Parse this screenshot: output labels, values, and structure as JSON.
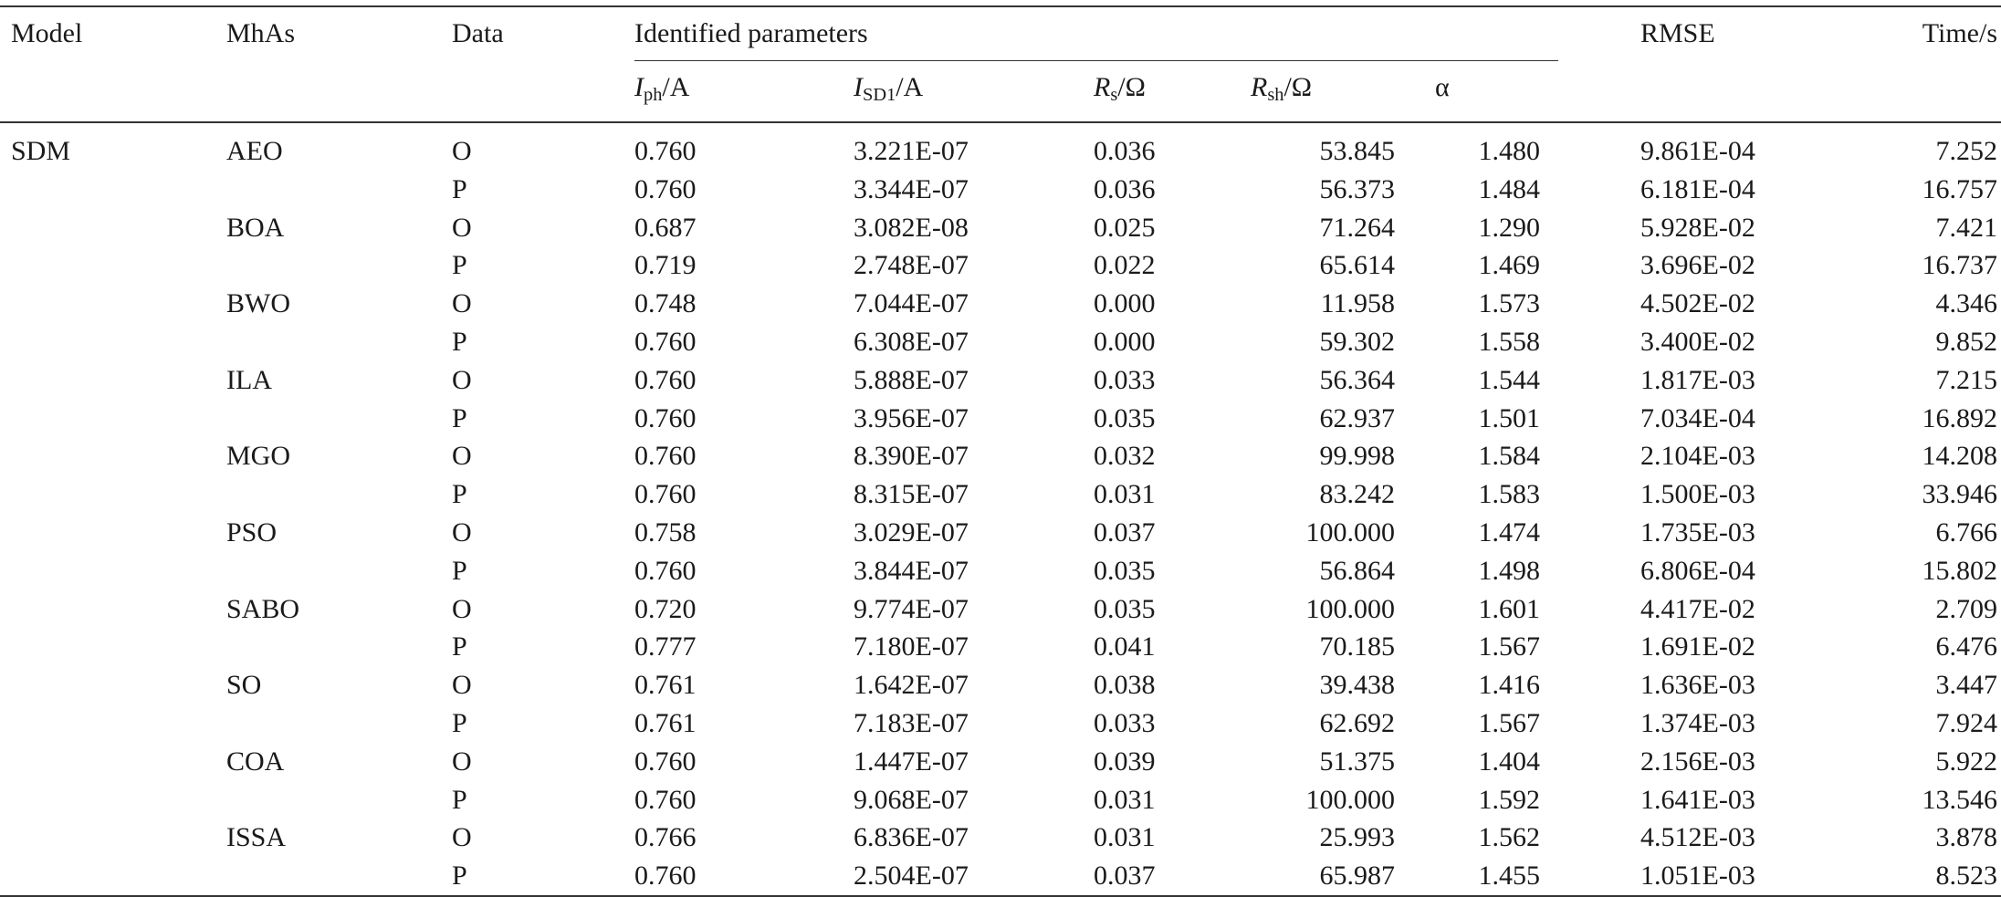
{
  "table": {
    "headers": {
      "model": "Model",
      "mhas": "MhAs",
      "data": "Data",
      "identified": "Identified parameters",
      "iph": "I",
      "iph_sub": "ph",
      "iph_unit": "/A",
      "isd": "I",
      "isd_sub": "SD1",
      "isd_unit": "/A",
      "rs": "R",
      "rs_sub": "s",
      "rs_unit": "/Ω",
      "rsh": "R",
      "rsh_sub": "sh",
      "rsh_unit": "/Ω",
      "alpha": "α",
      "rmse": "RMSE",
      "time": "Time/s"
    },
    "rows": [
      {
        "model": "SDM",
        "mha": "AEO",
        "data": "O",
        "iph": "0.760",
        "isd": "3.221E-07",
        "rs": "0.036",
        "rsh": "53.845",
        "alpha": "1.480",
        "rmse": "9.861E-04",
        "time": "7.252"
      },
      {
        "model": "",
        "mha": "",
        "data": "P",
        "iph": "0.760",
        "isd": "3.344E-07",
        "rs": "0.036",
        "rsh": "56.373",
        "alpha": "1.484",
        "rmse": "6.181E-04",
        "time": "16.757"
      },
      {
        "model": "",
        "mha": "BOA",
        "data": "O",
        "iph": "0.687",
        "isd": "3.082E-08",
        "rs": "0.025",
        "rsh": "71.264",
        "alpha": "1.290",
        "rmse": "5.928E-02",
        "time": "7.421"
      },
      {
        "model": "",
        "mha": "",
        "data": "P",
        "iph": "0.719",
        "isd": "2.748E-07",
        "rs": "0.022",
        "rsh": "65.614",
        "alpha": "1.469",
        "rmse": "3.696E-02",
        "time": "16.737"
      },
      {
        "model": "",
        "mha": "BWO",
        "data": "O",
        "iph": "0.748",
        "isd": "7.044E-07",
        "rs": "0.000",
        "rsh": "11.958",
        "alpha": "1.573",
        "rmse": "4.502E-02",
        "time": "4.346"
      },
      {
        "model": "",
        "mha": "",
        "data": "P",
        "iph": "0.760",
        "isd": "6.308E-07",
        "rs": "0.000",
        "rsh": "59.302",
        "alpha": "1.558",
        "rmse": "3.400E-02",
        "time": "9.852"
      },
      {
        "model": "",
        "mha": "ILA",
        "data": "O",
        "iph": "0.760",
        "isd": "5.888E-07",
        "rs": "0.033",
        "rsh": "56.364",
        "alpha": "1.544",
        "rmse": "1.817E-03",
        "time": "7.215"
      },
      {
        "model": "",
        "mha": "",
        "data": "P",
        "iph": "0.760",
        "isd": "3.956E-07",
        "rs": "0.035",
        "rsh": "62.937",
        "alpha": "1.501",
        "rmse": "7.034E-04",
        "time": "16.892"
      },
      {
        "model": "",
        "mha": "MGO",
        "data": "O",
        "iph": "0.760",
        "isd": "8.390E-07",
        "rs": "0.032",
        "rsh": "99.998",
        "alpha": "1.584",
        "rmse": "2.104E-03",
        "time": "14.208"
      },
      {
        "model": "",
        "mha": "",
        "data": "P",
        "iph": "0.760",
        "isd": "8.315E-07",
        "rs": "0.031",
        "rsh": "83.242",
        "alpha": "1.583",
        "rmse": "1.500E-03",
        "time": "33.946"
      },
      {
        "model": "",
        "mha": "PSO",
        "data": "O",
        "iph": "0.758",
        "isd": "3.029E-07",
        "rs": "0.037",
        "rsh": "100.000",
        "alpha": "1.474",
        "rmse": "1.735E-03",
        "time": "6.766"
      },
      {
        "model": "",
        "mha": "",
        "data": "P",
        "iph": "0.760",
        "isd": "3.844E-07",
        "rs": "0.035",
        "rsh": "56.864",
        "alpha": "1.498",
        "rmse": "6.806E-04",
        "time": "15.802"
      },
      {
        "model": "",
        "mha": "SABO",
        "data": "O",
        "iph": "0.720",
        "isd": "9.774E-07",
        "rs": "0.035",
        "rsh": "100.000",
        "alpha": "1.601",
        "rmse": "4.417E-02",
        "time": "2.709"
      },
      {
        "model": "",
        "mha": "",
        "data": "P",
        "iph": "0.777",
        "isd": "7.180E-07",
        "rs": "0.041",
        "rsh": "70.185",
        "alpha": "1.567",
        "rmse": "1.691E-02",
        "time": "6.476"
      },
      {
        "model": "",
        "mha": "SO",
        "data": "O",
        "iph": "0.761",
        "isd": "1.642E-07",
        "rs": "0.038",
        "rsh": "39.438",
        "alpha": "1.416",
        "rmse": "1.636E-03",
        "time": "3.447"
      },
      {
        "model": "",
        "mha": "",
        "data": "P",
        "iph": "0.761",
        "isd": "7.183E-07",
        "rs": "0.033",
        "rsh": "62.692",
        "alpha": "1.567",
        "rmse": "1.374E-03",
        "time": "7.924"
      },
      {
        "model": "",
        "mha": "COA",
        "data": "O",
        "iph": "0.760",
        "isd": "1.447E-07",
        "rs": "0.039",
        "rsh": "51.375",
        "alpha": "1.404",
        "rmse": "2.156E-03",
        "time": "5.922"
      },
      {
        "model": "",
        "mha": "",
        "data": "P",
        "iph": "0.760",
        "isd": "9.068E-07",
        "rs": "0.031",
        "rsh": "100.000",
        "alpha": "1.592",
        "rmse": "1.641E-03",
        "time": "13.546"
      },
      {
        "model": "",
        "mha": "ISSA",
        "data": "O",
        "iph": "0.766",
        "isd": "6.836E-07",
        "rs": "0.031",
        "rsh": "25.993",
        "alpha": "1.562",
        "rmse": "4.512E-03",
        "time": "3.878"
      },
      {
        "model": "",
        "mha": "",
        "data": "P",
        "iph": "0.760",
        "isd": "2.504E-07",
        "rs": "0.037",
        "rsh": "65.987",
        "alpha": "1.455",
        "rmse": "1.051E-03",
        "time": "8.523"
      }
    ]
  }
}
